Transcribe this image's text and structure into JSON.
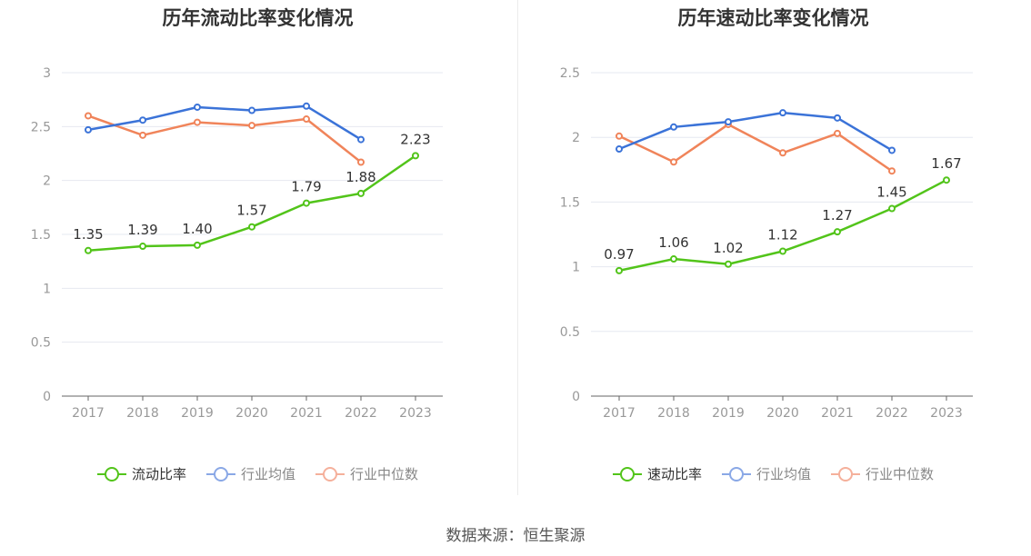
{
  "source": "数据来源：恒生聚源",
  "colors": {
    "company": "#52c41a",
    "industry_avg": "#3b73d8",
    "industry_median": "#f0845a",
    "legend_avg": "#8aa8e6",
    "legend_median": "#f5b09b",
    "grid": "#e6e8f0",
    "axis": "#666666",
    "tick_text": "#999999",
    "label_text": "#333333"
  },
  "chart_data": [
    {
      "type": "line",
      "title": "历年流动比率变化情况",
      "categories": [
        "2017",
        "2018",
        "2019",
        "2020",
        "2021",
        "2022",
        "2023"
      ],
      "ylim": [
        0,
        3
      ],
      "yticks": [
        "0",
        "0.5",
        "1",
        "1.5",
        "2",
        "2.5",
        "3"
      ],
      "grid": true,
      "legend_position": "bottom",
      "series": [
        {
          "name": "流动比率",
          "color_key": "company",
          "values": [
            1.35,
            1.39,
            1.4,
            1.57,
            1.79,
            1.88,
            2.23
          ],
          "labels": [
            "1.35",
            "1.39",
            "1.40",
            "1.57",
            "1.79",
            "1.88",
            "2.23"
          ]
        },
        {
          "name": "行业均值",
          "color_key": "industry_avg",
          "values": [
            2.47,
            2.56,
            2.68,
            2.65,
            2.69,
            2.38,
            null
          ]
        },
        {
          "name": "行业中位数",
          "color_key": "industry_median",
          "values": [
            2.6,
            2.42,
            2.54,
            2.51,
            2.57,
            2.17,
            null
          ]
        }
      ]
    },
    {
      "type": "line",
      "title": "历年速动比率变化情况",
      "categories": [
        "2017",
        "2018",
        "2019",
        "2020",
        "2021",
        "2022",
        "2023"
      ],
      "ylim": [
        0,
        2.5
      ],
      "yticks": [
        "0",
        "0.5",
        "1",
        "1.5",
        "2",
        "2.5"
      ],
      "grid": true,
      "legend_position": "bottom",
      "series": [
        {
          "name": "速动比率",
          "color_key": "company",
          "values": [
            0.97,
            1.06,
            1.02,
            1.12,
            1.27,
            1.45,
            1.67
          ],
          "labels": [
            "0.97",
            "1.06",
            "1.02",
            "1.12",
            "1.27",
            "1.45",
            "1.67"
          ]
        },
        {
          "name": "行业均值",
          "color_key": "industry_avg",
          "values": [
            1.91,
            2.08,
            2.12,
            2.19,
            2.15,
            1.9,
            null
          ]
        },
        {
          "name": "行业中位数",
          "color_key": "industry_median",
          "values": [
            2.01,
            1.81,
            2.1,
            1.88,
            2.03,
            1.74,
            null
          ]
        }
      ]
    }
  ]
}
